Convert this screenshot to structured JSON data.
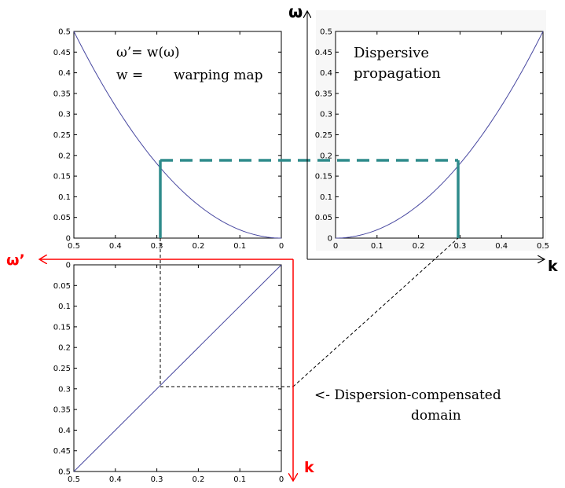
{
  "texts": {
    "omega_prime_eq": "ω’= w(ω)",
    "w_eq": "w =",
    "warping_map": "warping map",
    "dispersive_1": "Dispersive",
    "dispersive_2": "propagation",
    "compensated_1": "<- Dispersion-compensated",
    "compensated_2": "domain"
  },
  "axis_labels": {
    "omega": "ω",
    "omega_prime": "ω’",
    "k_right": "k",
    "k_bottom": "k"
  },
  "colors": {
    "curve": "#4848a0",
    "marker": "#2e8b8b",
    "red_axis": "#ff0000",
    "dashed_black": "#000000"
  },
  "chart_data": [
    {
      "type": "line",
      "description": "warping map (top-left)",
      "x": [
        0.5,
        0.45,
        0.4,
        0.35,
        0.3,
        0.25,
        0.2,
        0.15,
        0.1,
        0.05,
        0
      ],
      "y": [
        0.5,
        0.405,
        0.32,
        0.245,
        0.18,
        0.125,
        0.08,
        0.045,
        0.02,
        0.005,
        0
      ],
      "xlim": [
        0.5,
        0
      ],
      "ylim": [
        0,
        0.5
      ],
      "xticks": [
        "0.5",
        "0.4",
        "0.3",
        "0.2",
        "0.1",
        "0"
      ],
      "yticks": [
        "0",
        "0.05",
        "0.1",
        "0.15",
        "0.2",
        "0.25",
        "0.3",
        "0.35",
        "0.4",
        "0.45",
        "0.5"
      ],
      "marker": {
        "x": 0.29,
        "y": 0.19
      }
    },
    {
      "type": "line",
      "description": "dispersive propagation (top-right)",
      "x": [
        0,
        0.05,
        0.1,
        0.15,
        0.2,
        0.25,
        0.3,
        0.35,
        0.4,
        0.45,
        0.5
      ],
      "y": [
        0,
        0.005,
        0.02,
        0.045,
        0.08,
        0.125,
        0.18,
        0.245,
        0.32,
        0.405,
        0.5
      ],
      "xlim": [
        0,
        0.5
      ],
      "ylim": [
        0,
        0.5
      ],
      "xticks": [
        "0",
        "0.1",
        "0.2",
        "0.3",
        "0.4",
        "0.5"
      ],
      "yticks": [
        "0",
        "0.05",
        "0.1",
        "0.15",
        "0.2",
        "0.25",
        "0.3",
        "0.35",
        "0.4",
        "0.45",
        "0.5"
      ],
      "marker": {
        "x": 0.3,
        "y": 0.19
      }
    },
    {
      "type": "line",
      "description": "dispersion-compensated (bottom-left)",
      "x": [
        0.5,
        0
      ],
      "y": [
        0.5,
        0
      ],
      "xlim": [
        0.5,
        0
      ],
      "ylim": [
        0,
        0.5
      ],
      "xticks": [
        "0.5",
        "0.4",
        "0.3",
        "0.2",
        "0.1",
        "0"
      ],
      "yticks": [
        "0",
        "0.05",
        "0.1",
        "0.15",
        "0.2",
        "0.25",
        "0.3",
        "0.35",
        "0.4",
        "0.45",
        "0.5"
      ],
      "marker": {
        "x": 0.29,
        "y": 0.29
      }
    }
  ]
}
